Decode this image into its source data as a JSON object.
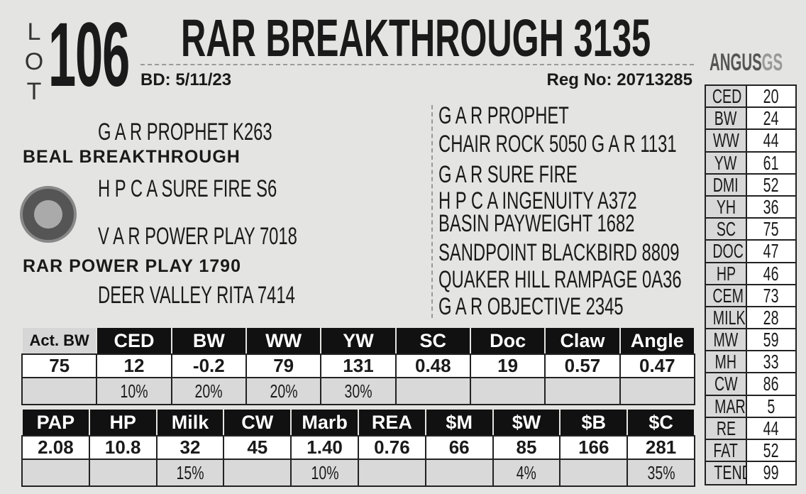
{
  "lot": {
    "label": "LOT",
    "number": "106"
  },
  "title": "RAR BREAKTHROUGH 3135",
  "birth_date": {
    "label": "BD:",
    "value": "5/11/23"
  },
  "registration": {
    "label": "Reg No:",
    "value": "20713285"
  },
  "logo": {
    "text_main": "ANGUS",
    "text_suffix": "GS"
  },
  "pedigree_left": {
    "sire_sire": "G A R PROPHET K263",
    "sire": "BEAL BREAKTHROUGH",
    "sire_dam": "H P C A SURE FIRE S6",
    "dam_sire": "V A R POWER PLAY 7018",
    "dam": "RAR POWER PLAY 1790",
    "dam_dam": "DEER VALLEY RITA 7414"
  },
  "pedigree_right": [
    "G A R PROPHET",
    "CHAIR ROCK 5050 G A R 1131",
    "G A R SURE FIRE",
    "H P C A INGENUITY A372",
    "BASIN PAYWEIGHT 1682",
    "SANDPOINT BLACKBIRD 8809",
    "QUAKER HILL RAMPAGE 0A36",
    "G A R OBJECTIVE 2345"
  ],
  "side_table": [
    [
      "CED",
      "20"
    ],
    [
      "BW",
      "24"
    ],
    [
      "WW",
      "44"
    ],
    [
      "YW",
      "61"
    ],
    [
      "DMI",
      "52"
    ],
    [
      "YH",
      "36"
    ],
    [
      "SC",
      "75"
    ],
    [
      "DOC",
      "47"
    ],
    [
      "HP",
      "46"
    ],
    [
      "CEM",
      "73"
    ],
    [
      "MILK",
      "28"
    ],
    [
      "MW",
      "59"
    ],
    [
      "MH",
      "33"
    ],
    [
      "CW",
      "86"
    ],
    [
      "MARB",
      "5"
    ],
    [
      "RE",
      "44"
    ],
    [
      "FAT",
      "52"
    ],
    [
      "TEND",
      "99"
    ]
  ],
  "epd1": {
    "headers": [
      "Act. BW",
      "CED",
      "BW",
      "WW",
      "YW",
      "SC",
      "Doc",
      "Claw",
      "Angle"
    ],
    "values": [
      "75",
      "12",
      "-0.2",
      "79",
      "131",
      "0.48",
      "19",
      "0.57",
      "0.47"
    ],
    "percents": [
      "",
      "10%",
      "20%",
      "20%",
      "30%",
      "",
      "",
      "",
      ""
    ]
  },
  "epd2": {
    "headers": [
      "PAP",
      "HP",
      "Milk",
      "CW",
      "Marb",
      "REA",
      "$M",
      "$W",
      "$B",
      "$C"
    ],
    "values": [
      "2.08",
      "10.8",
      "32",
      "45",
      "1.40",
      "0.76",
      "66",
      "85",
      "166",
      "281"
    ],
    "percents": [
      "",
      "",
      "15%",
      "",
      "10%",
      "",
      "",
      "4%",
      "",
      "35%"
    ]
  }
}
